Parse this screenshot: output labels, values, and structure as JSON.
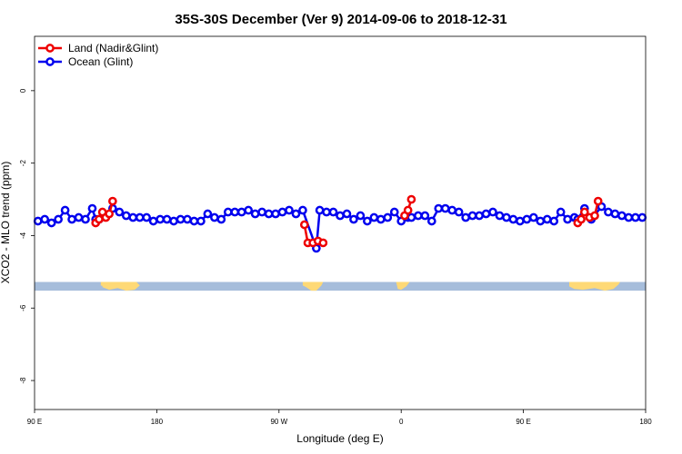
{
  "chart_data": {
    "type": "line",
    "title": "35S-30S December (Ver 9)   2014-09-06 to 2018-12-31",
    "xlabel": "Longitude (deg E)",
    "ylabel": "XCO2 - MLO trend (ppm)",
    "xlim": [
      90,
      450
    ],
    "ylim": [
      -8.8,
      1.5
    ],
    "x_ticks": [
      90,
      162,
      234,
      306,
      378,
      450
    ],
    "x_tick_labels": [
      "90 E",
      "180",
      "90 W",
      "0",
      "90 E",
      "180"
    ],
    "y_ticks": [
      0,
      -2,
      -4,
      -6,
      -8
    ],
    "y_tick_labels": [
      "0",
      "-2",
      "-4",
      "-6",
      "-8"
    ],
    "grid": false,
    "legend_position": "top-left",
    "land_band": {
      "y_top": -5.28,
      "y_bottom": -5.52,
      "ocean_color": "#a6bddb",
      "land_color": "#fed976"
    },
    "series": [
      {
        "name": "Land (Nadir&Glint)",
        "color": "#ee0000",
        "segments": [
          {
            "x": [
              126,
              128
            ],
            "y": [
              -3.65,
              -3.55
            ]
          },
          {
            "x": [
              130,
              132,
              134,
              136
            ],
            "y": [
              -3.35,
              -3.5,
              -3.4,
              -3.05
            ]
          },
          {
            "x": [
              249,
              251,
              254,
              257,
              260
            ],
            "y": [
              -3.7,
              -4.2,
              -4.2,
              -4.15,
              -4.2
            ]
          },
          {
            "x": [
              308,
              310,
              312
            ],
            "y": [
              -3.45,
              -3.3,
              -3.0
            ]
          },
          {
            "x": [
              410,
              412,
              414,
              417,
              420,
              422
            ],
            "y": [
              -3.65,
              -3.55,
              -3.35,
              -3.5,
              -3.45,
              -3.05
            ]
          }
        ]
      },
      {
        "name": "Ocean (Glint)",
        "color": "#0000ee",
        "x": [
          92,
          96,
          100,
          104,
          108,
          112,
          116,
          120,
          124,
          126,
          128,
          136,
          140,
          144,
          148,
          152,
          156,
          160,
          164,
          168,
          172,
          176,
          180,
          184,
          188,
          192,
          196,
          200,
          204,
          208,
          212,
          216,
          220,
          224,
          228,
          232,
          236,
          240,
          244,
          248,
          256,
          258,
          262,
          266,
          270,
          274,
          278,
          282,
          286,
          290,
          294,
          298,
          302,
          306,
          310,
          312,
          316,
          320,
          324,
          328,
          332,
          336,
          340,
          344,
          348,
          352,
          356,
          360,
          364,
          368,
          372,
          376,
          380,
          384,
          388,
          392,
          396,
          400,
          404,
          408,
          410,
          414,
          418,
          424,
          428,
          432,
          436,
          440,
          444,
          448
        ],
        "y": [
          -3.6,
          -3.55,
          -3.65,
          -3.55,
          -3.3,
          -3.55,
          -3.5,
          -3.55,
          -3.25,
          -3.55,
          -3.55,
          -3.25,
          -3.35,
          -3.45,
          -3.5,
          -3.5,
          -3.5,
          -3.6,
          -3.55,
          -3.55,
          -3.6,
          -3.55,
          -3.55,
          -3.6,
          -3.6,
          -3.4,
          -3.5,
          -3.55,
          -3.35,
          -3.35,
          -3.35,
          -3.3,
          -3.4,
          -3.35,
          -3.4,
          -3.4,
          -3.35,
          -3.3,
          -3.4,
          -3.3,
          -4.35,
          -3.3,
          -3.35,
          -3.35,
          -3.45,
          -3.4,
          -3.55,
          -3.45,
          -3.6,
          -3.5,
          -3.55,
          -3.5,
          -3.35,
          -3.6,
          -3.5,
          -3.5,
          -3.45,
          -3.45,
          -3.6,
          -3.25,
          -3.25,
          -3.3,
          -3.35,
          -3.5,
          -3.45,
          -3.45,
          -3.4,
          -3.35,
          -3.45,
          -3.5,
          -3.55,
          -3.6,
          -3.55,
          -3.5,
          -3.6,
          -3.55,
          -3.6,
          -3.35,
          -3.55,
          -3.5,
          -3.55,
          -3.25,
          -3.55,
          -3.2,
          -3.35,
          -3.4,
          -3.45,
          -3.5,
          -3.5,
          -3.5
        ]
      }
    ]
  }
}
